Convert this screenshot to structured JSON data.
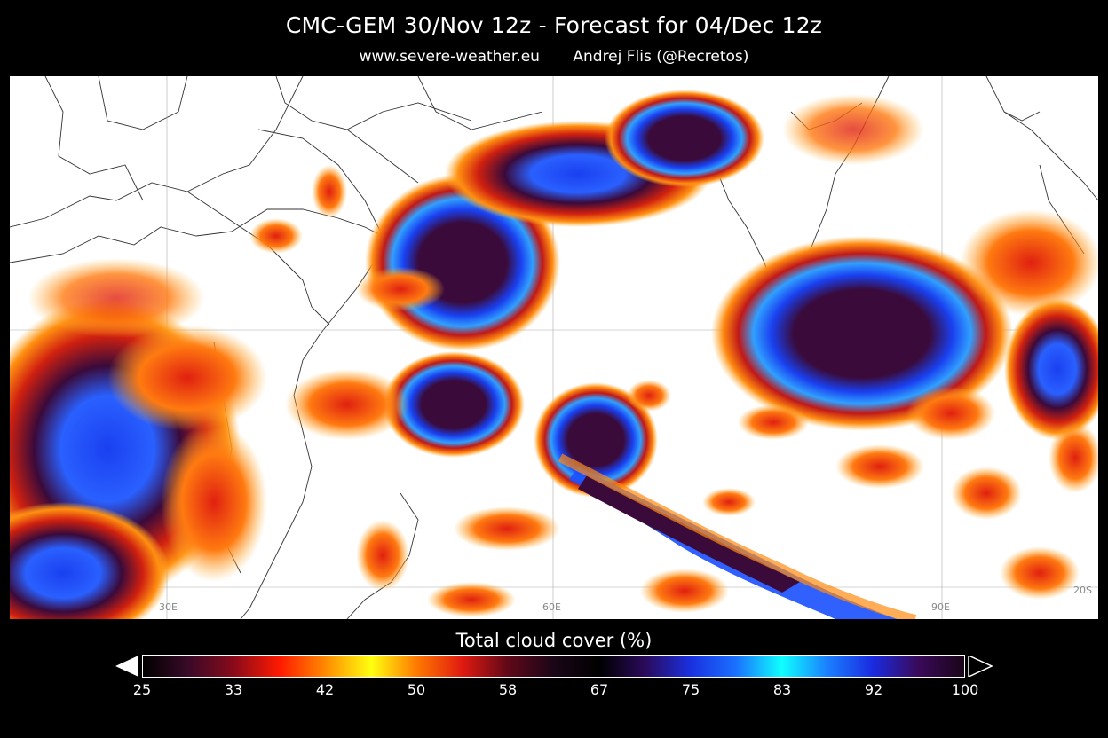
{
  "header": {
    "title": "CMC-GEM 30/Nov 12z - Forecast for 04/Dec 12z",
    "website": "www.severe-weather.eu",
    "author": "Andrej Flis (@Recretos)"
  },
  "map": {
    "variable": "Total cloud cover",
    "grid_labels": {
      "lon_30": "30E",
      "lon_60": "60E",
      "lon_90": "90E",
      "lat_20s": "20S"
    }
  },
  "colorbar": {
    "title": "Total cloud cover (%)",
    "ticks": [
      "25",
      "33",
      "42",
      "50",
      "58",
      "67",
      "75",
      "83",
      "92",
      "100"
    ],
    "colors": [
      "#000000",
      "#3a0a28",
      "#8a0a1a",
      "#ff1a00",
      "#ff8a00",
      "#ffff10",
      "#ff7a00",
      "#e01a10",
      "#600818",
      "#1a0618",
      "#000000",
      "#2a0a5a",
      "#1a30e0",
      "#1a70ff",
      "#10ffff",
      "#1a80ff",
      "#1a2ae0",
      "#3a0a5a",
      "#1a0418"
    ]
  }
}
